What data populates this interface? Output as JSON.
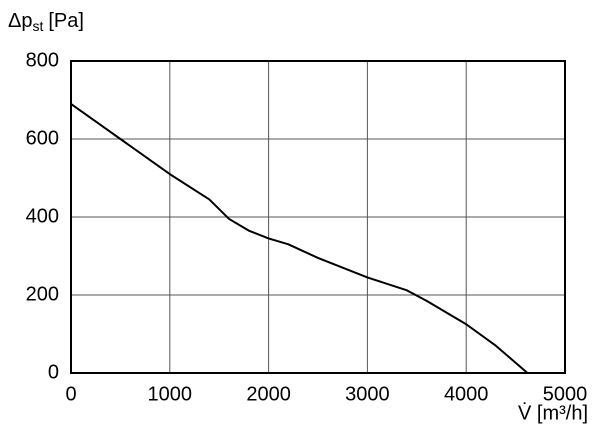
{
  "chart_data": {
    "type": "line",
    "y_label": {
      "symbol": "Δp",
      "sub": "st",
      "unit": "[Pa]"
    },
    "x_label": "V̇ [m³/h]",
    "x": [
      0,
      500,
      1000,
      1400,
      1600,
      1800,
      2000,
      2200,
      2500,
      3000,
      3400,
      3600,
      4000,
      4300,
      4620
    ],
    "series": [
      {
        "color": "#000000",
        "values": [
          690,
          600,
          510,
          445,
          395,
          365,
          345,
          330,
          295,
          245,
          212,
          185,
          125,
          70,
          0
        ]
      }
    ],
    "xlim": [
      0,
      5000
    ],
    "xticks": [
      0,
      1000,
      2000,
      3000,
      4000,
      5000
    ],
    "ylim": [
      0,
      800
    ],
    "yticks": [
      0,
      200,
      400,
      600,
      800
    ],
    "grid": true
  }
}
